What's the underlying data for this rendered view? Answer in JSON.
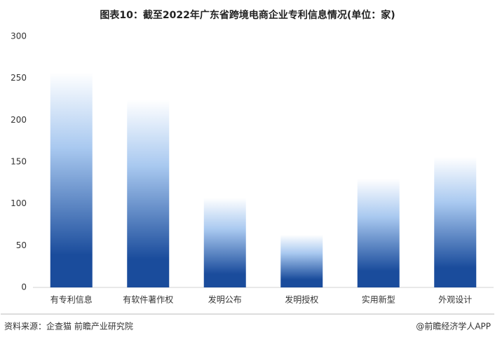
{
  "chart_data": {
    "type": "bar",
    "title": "图表10：截至2022年广东省跨境电商企业专利信息情况(单位：家)",
    "categories": [
      "有专利信息",
      "有软件著作权",
      "发明公布",
      "发明授权",
      "实用新型",
      "外观设计"
    ],
    "values": [
      257,
      224,
      107,
      63,
      130,
      156
    ],
    "color": "#1a4c9c",
    "ylim": [
      0,
      300
    ],
    "yticks": [
      0,
      50,
      100,
      150,
      200,
      250,
      300
    ],
    "grid": false,
    "source": "资料来源：企查猫 前瞻产业研究院",
    "credit": "@前瞻经济学人APP"
  }
}
